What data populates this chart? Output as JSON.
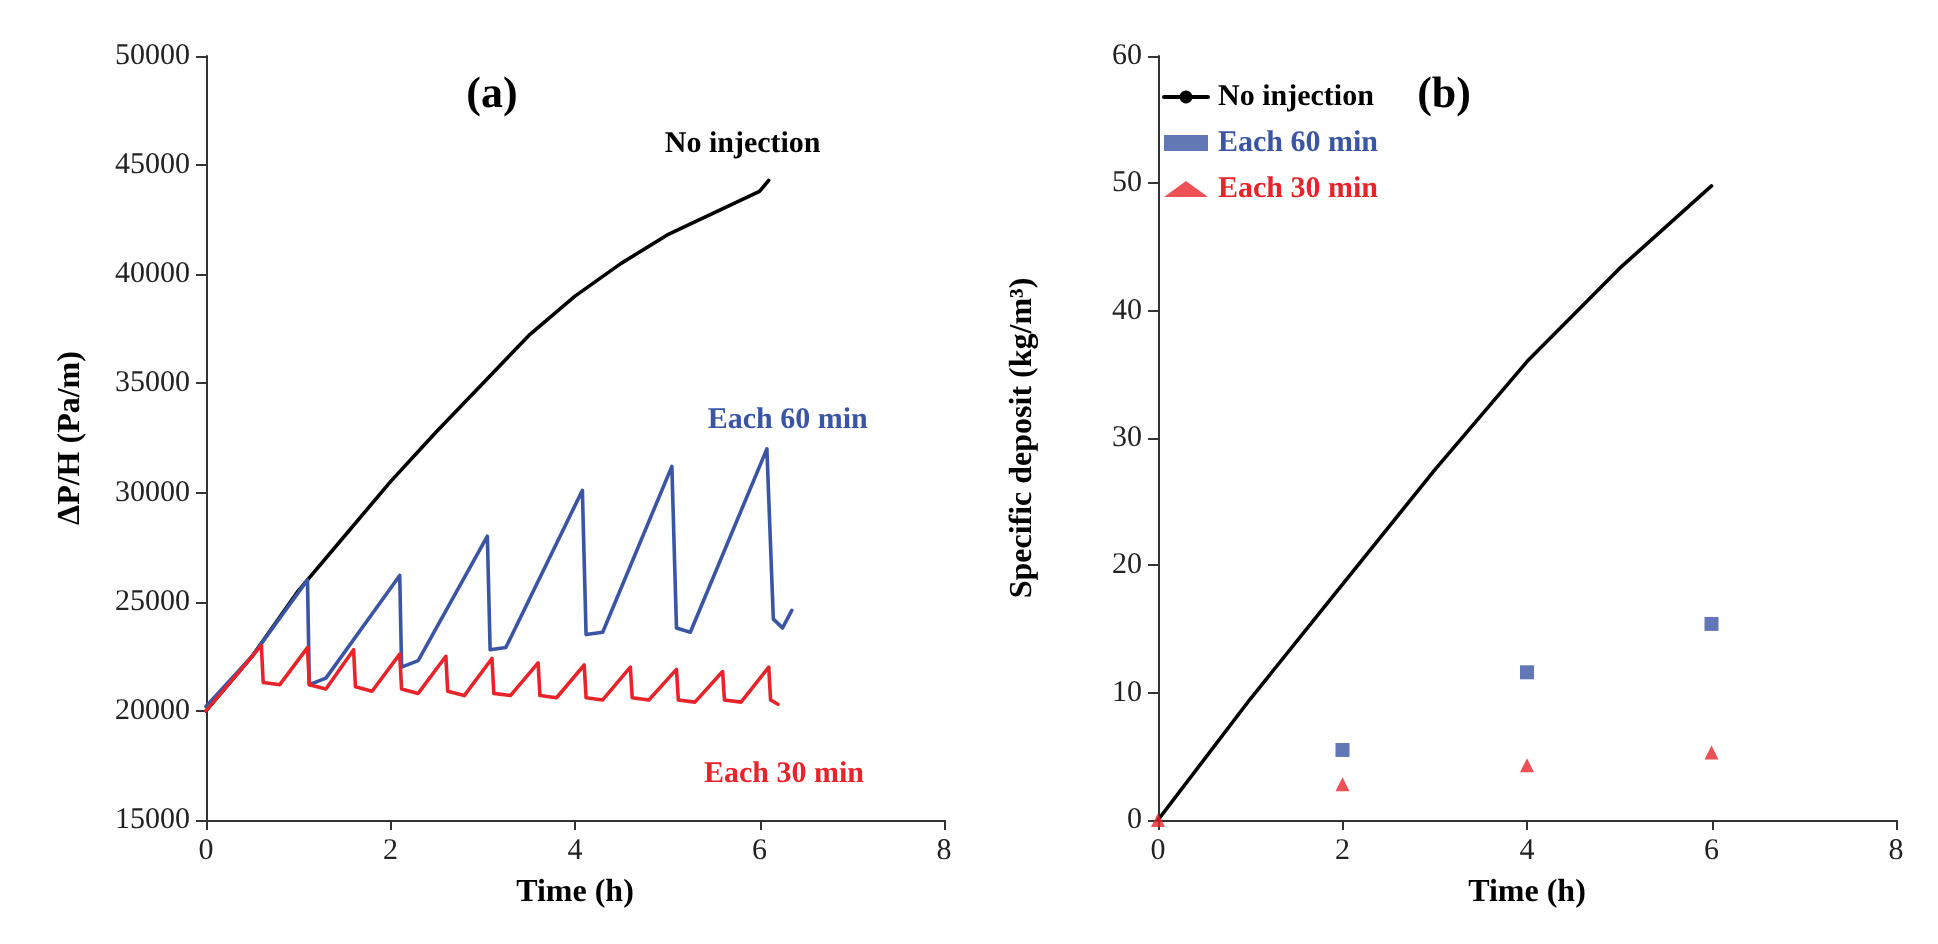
{
  "chart_data": [
    {
      "type": "line",
      "title": "(a)",
      "xlabel": "Time (h)",
      "ylabel": "ΔP/H (Pa/m)",
      "xlim": [
        0,
        8
      ],
      "xticks": [
        0,
        2,
        4,
        6,
        8
      ],
      "ylim": [
        15000,
        50000
      ],
      "yticks": [
        15000,
        20000,
        25000,
        30000,
        35000,
        40000,
        45000,
        50000
      ],
      "grid": false,
      "legend": false,
      "marker": "none",
      "series": [
        {
          "name": "No injection",
          "color": "#000000",
          "x": [
            0,
            0.5,
            1,
            1.5,
            2,
            2.5,
            3,
            3.5,
            4,
            4.5,
            5,
            5.5,
            6,
            6.1
          ],
          "values": [
            20000,
            22500,
            25500,
            28000,
            30500,
            32800,
            35000,
            37200,
            39000,
            40500,
            41800,
            42800,
            43800,
            44300
          ]
        },
        {
          "name": "Each 60 min",
          "color": "#3a55a4",
          "x": [
            0,
            0.5,
            1.1,
            1.12,
            1.3,
            2.1,
            2.12,
            2.3,
            3.05,
            3.08,
            3.25,
            4.08,
            4.12,
            4.3,
            5.05,
            5.1,
            5.25,
            6.08,
            6.15,
            6.25,
            6.35
          ],
          "values": [
            20200,
            22500,
            26000,
            21200,
            21500,
            26200,
            22000,
            22300,
            28000,
            22800,
            22900,
            30100,
            23500,
            23600,
            31200,
            23800,
            23600,
            32000,
            24200,
            23800,
            24600
          ]
        },
        {
          "name": "Each 30 min",
          "color": "#e8242a",
          "x": [
            0,
            0.6,
            0.62,
            0.8,
            1.1,
            1.12,
            1.3,
            1.6,
            1.62,
            1.8,
            2.1,
            2.12,
            2.3,
            2.6,
            2.62,
            2.8,
            3.1,
            3.12,
            3.3,
            3.6,
            3.62,
            3.8,
            4.1,
            4.12,
            4.3,
            4.6,
            4.62,
            4.8,
            5.1,
            5.12,
            5.3,
            5.6,
            5.62,
            5.8,
            6.1,
            6.12,
            6.2
          ],
          "values": [
            20000,
            23000,
            21300,
            21200,
            22900,
            21200,
            21000,
            22800,
            21100,
            20900,
            22600,
            21000,
            20800,
            22500,
            20900,
            20700,
            22400,
            20800,
            20700,
            22200,
            20700,
            20600,
            22100,
            20600,
            20500,
            22000,
            20600,
            20500,
            21900,
            20500,
            20400,
            21800,
            20500,
            20400,
            22000,
            20500,
            20300
          ]
        }
      ]
    },
    {
      "type": "line",
      "title": "(b)",
      "xlabel": "Time (h)",
      "ylabel": "Specific deposit (kg/m³)",
      "xlim": [
        0,
        8
      ],
      "xticks": [
        0,
        2,
        4,
        6,
        8
      ],
      "ylim": [
        0,
        60
      ],
      "yticks": [
        0,
        10,
        20,
        30,
        40,
        50,
        60
      ],
      "grid": false,
      "legend": "top left",
      "series": [
        {
          "name": "No injection",
          "color": "#000000",
          "marker": "none",
          "x": [
            0,
            1,
            2,
            3,
            4,
            5,
            6
          ],
          "values": [
            0,
            9.5,
            18.5,
            27.5,
            36,
            43.3,
            49.8
          ]
        },
        {
          "name": "Each 60 min",
          "type": "scatter",
          "color": "#3a55a4",
          "marker": "square",
          "x": [
            2,
            4,
            6
          ],
          "values": [
            5.5,
            11.6,
            15.4
          ]
        },
        {
          "name": "Each 30 min",
          "type": "scatter",
          "color": "#e8242a",
          "marker": "triangle",
          "x": [
            0,
            2,
            4,
            6
          ],
          "values": [
            0,
            2.8,
            4.3,
            5.3
          ]
        }
      ]
    }
  ]
}
